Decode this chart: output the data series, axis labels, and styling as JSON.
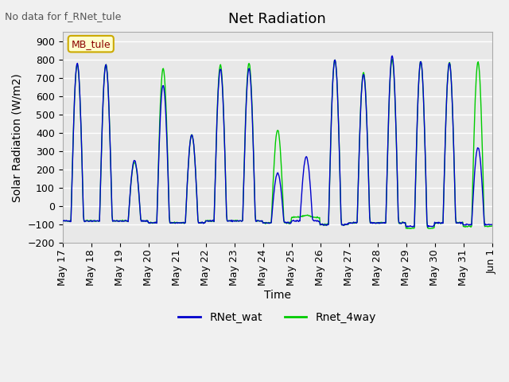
{
  "title": "Net Radiation",
  "ylabel": "Solar Radiation (W/m2)",
  "xlabel": "Time",
  "top_left_text": "No data for f_RNet_tule",
  "annotation_box": "MB_tule",
  "ylim": [
    -200,
    950
  ],
  "color_blue": "#0000CD",
  "color_green": "#00CC00",
  "legend_entries": [
    "RNet_wat",
    "Rnet_4way"
  ],
  "bg_color": "#E8E8E8",
  "grid_color": "#FFFFFF",
  "n_days": 15,
  "pts_per_day": 48,
  "title_fontsize": 13,
  "label_fontsize": 10,
  "tick_fontsize": 9,
  "peaks_blue": [
    780,
    770,
    250,
    660,
    390,
    750,
    750,
    180,
    270,
    800,
    720,
    820,
    790,
    780,
    320
  ],
  "peaks_green": [
    775,
    775,
    240,
    750,
    390,
    770,
    780,
    415,
    -50,
    800,
    730,
    800,
    790,
    785,
    785
  ],
  "troughs_blue": [
    -80,
    -80,
    -80,
    -90,
    -90,
    -80,
    -80,
    -90,
    -80,
    -100,
    -90,
    -90,
    -110,
    -90,
    -100
  ],
  "troughs_green": [
    -80,
    -80,
    -80,
    -90,
    -90,
    -80,
    -80,
    -90,
    -60,
    -100,
    -90,
    -90,
    -120,
    -90,
    -110
  ]
}
